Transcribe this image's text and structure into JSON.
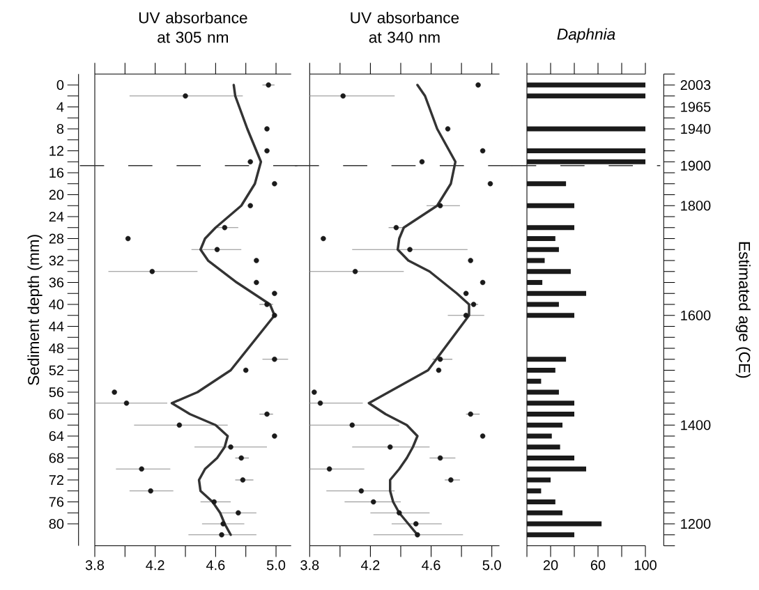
{
  "chart_data": [
    {
      "type": "scatter",
      "title": "UV absorbance at 305 nm",
      "ylabel": "Sediment depth (mm)",
      "orientation": "horizontal",
      "xlim": [
        3.8,
        5.1
      ],
      "xticks": [
        3.8,
        {
          "value": 4.0,
          "label": null
        },
        4.2,
        {
          "value": 4.4,
          "label": null
        },
        4.6,
        {
          "value": 4.8,
          "label": null
        },
        {
          "value": 5,
          "label": "5.0"
        }
      ],
      "ylim": [
        84,
        -2
      ],
      "yticks": [
        0,
        4,
        8,
        12,
        16,
        20,
        24,
        28,
        32,
        36,
        40,
        44,
        48,
        52,
        56,
        60,
        64,
        68,
        72,
        76,
        80
      ],
      "series": [
        {
          "type": "scatter",
          "marker": "circle",
          "color": "#1a1a1a",
          "x": [
            0,
            2,
            8,
            12,
            14,
            18,
            22,
            26,
            28,
            30,
            32,
            34,
            36,
            38,
            40,
            42,
            50,
            52,
            56,
            58,
            60,
            62,
            64,
            66,
            68,
            70,
            72,
            74,
            76,
            78,
            80,
            82
          ],
          "values": [
            4.95,
            4.4,
            4.94,
            4.94,
            4.83,
            4.99,
            4.83,
            4.66,
            4.02,
            4.61,
            4.87,
            4.18,
            4.87,
            4.99,
            4.94,
            4.99,
            4.99,
            4.8,
            3.93,
            4.01,
            4.94,
            4.36,
            4.99,
            4.7,
            4.77,
            4.11,
            4.78,
            4.17,
            4.59,
            4.75,
            4.65,
            4.64
          ],
          "errors": [
            [
              4.91,
              4.99
            ],
            [
              4.03,
              4.78
            ],
            null,
            null,
            null,
            null,
            null,
            [
              4.6,
              4.75
            ],
            null,
            [
              4.44,
              4.77
            ],
            null,
            [
              3.89,
              4.48
            ],
            null,
            null,
            [
              4.89,
              4.98
            ],
            null,
            [
              4.91,
              5.08
            ],
            null,
            null,
            [
              3.8,
              4.28
            ],
            [
              4.89,
              4.98
            ],
            [
              4.06,
              4.68
            ],
            null,
            [
              4.46,
              4.94
            ],
            [
              4.73,
              4.82
            ],
            [
              3.94,
              4.3
            ],
            [
              4.73,
              4.85
            ],
            [
              4.03,
              4.32
            ],
            [
              4.5,
              4.7
            ],
            [
              4.63,
              4.87
            ],
            [
              4.51,
              4.79
            ],
            [
              4.42,
              4.87
            ]
          ]
        },
        {
          "type": "line",
          "color": "#333333",
          "x": [
            0,
            2,
            8,
            14,
            18,
            22,
            26,
            28,
            30,
            32,
            36,
            40,
            42,
            52,
            56,
            58,
            60,
            62,
            64,
            66,
            68,
            70,
            72,
            74,
            76,
            78,
            80,
            82
          ],
          "values": [
            4.72,
            4.73,
            4.81,
            4.9,
            4.86,
            4.77,
            4.6,
            4.53,
            4.5,
            4.55,
            4.74,
            4.96,
            4.99,
            4.7,
            4.48,
            4.31,
            4.43,
            4.6,
            4.68,
            4.66,
            4.61,
            4.53,
            4.49,
            4.5,
            4.58,
            4.63,
            4.66,
            4.7
          ]
        }
      ],
      "ref_lines": [
        {
          "axis": "y",
          "value": 14.7,
          "line_style": "dashed",
          "color": "#333333"
        }
      ]
    },
    {
      "type": "scatter",
      "title": "UV absorbance at 340 nm",
      "orientation": "horizontal",
      "tick_labels": "x",
      "xlim": [
        3.8,
        5.05
      ],
      "xticks": [
        3.8,
        {
          "value": 4.0,
          "label": null
        },
        4.2,
        {
          "value": 4.4,
          "label": null
        },
        4.6,
        {
          "value": 4.8,
          "label": null
        },
        {
          "value": 5,
          "label": "5.0"
        }
      ],
      "ylim": [
        84,
        -2
      ],
      "series": [
        {
          "type": "scatter",
          "marker": "circle",
          "color": "#1a1a1a",
          "x": [
            0,
            2,
            8,
            12,
            14,
            18,
            22,
            26,
            28,
            30,
            32,
            34,
            36,
            38,
            40,
            42,
            50,
            52,
            56,
            58,
            60,
            62,
            64,
            66,
            68,
            70,
            72,
            74,
            76,
            78,
            80,
            82
          ],
          "values": [
            4.91,
            4.02,
            4.71,
            4.94,
            4.54,
            4.99,
            4.66,
            4.37,
            3.89,
            4.46,
            4.86,
            4.1,
            4.94,
            4.83,
            4.88,
            4.83,
            4.66,
            4.65,
            3.83,
            3.87,
            4.86,
            4.08,
            4.94,
            4.33,
            4.66,
            3.93,
            4.73,
            4.14,
            4.22,
            4.39,
            4.5,
            4.51
          ],
          "errors": [
            null,
            [
              3.8,
              4.36
            ],
            null,
            null,
            null,
            null,
            [
              4.57,
              4.79
            ],
            [
              4.32,
              4.42
            ],
            null,
            [
              4.08,
              4.84
            ],
            null,
            [
              3.8,
              4.42
            ],
            null,
            null,
            [
              4.85,
              4.91
            ],
            [
              4.71,
              4.95
            ],
            [
              4.61,
              4.74
            ],
            null,
            null,
            [
              3.8,
              4.15
            ],
            [
              4.83,
              4.92
            ],
            [
              3.8,
              4.39
            ],
            null,
            [
              4.08,
              4.59
            ],
            [
              4.59,
              4.76
            ],
            [
              3.8,
              4.16
            ],
            [
              4.69,
              4.79
            ],
            [
              3.91,
              4.36
            ],
            [
              4.03,
              4.4
            ],
            [
              4.2,
              4.59
            ],
            [
              4.34,
              4.67
            ],
            [
              4.22,
              4.81
            ]
          ]
        },
        {
          "type": "line",
          "color": "#333333",
          "x": [
            0,
            2,
            8,
            14,
            18,
            22,
            26,
            28,
            30,
            32,
            34,
            36,
            38,
            40,
            42,
            52,
            56,
            58,
            60,
            62,
            64,
            66,
            68,
            70,
            72,
            74,
            76,
            78,
            80,
            82
          ],
          "values": [
            4.51,
            4.56,
            4.64,
            4.76,
            4.73,
            4.64,
            4.42,
            4.39,
            4.38,
            4.45,
            4.59,
            4.68,
            4.77,
            4.85,
            4.85,
            4.58,
            4.32,
            4.19,
            4.3,
            4.44,
            4.51,
            4.48,
            4.44,
            4.39,
            4.33,
            4.33,
            4.35,
            4.39,
            4.45,
            4.51
          ]
        }
      ],
      "ref_lines": [
        {
          "axis": "y",
          "value": 14.7,
          "line_style": "dashed",
          "color": "#333333"
        }
      ]
    },
    {
      "type": "bar",
      "title": "Daphnia",
      "y2label": "Estimated age (CE)",
      "orientation": "horizontal",
      "color": "#1a1a1a",
      "x": [
        0,
        2,
        8,
        12,
        14,
        18,
        22,
        26,
        28,
        30,
        32,
        34,
        36,
        38,
        40,
        42,
        50,
        52,
        54,
        56,
        58,
        60,
        62,
        64,
        66,
        68,
        70,
        72,
        74,
        76,
        78,
        80,
        82
      ],
      "values": [
        100,
        100,
        100,
        100,
        100,
        33,
        40,
        40,
        24,
        27,
        15,
        37,
        13,
        50,
        27,
        40,
        33,
        24,
        12,
        27,
        40,
        40,
        30,
        21,
        28,
        40,
        50,
        20,
        12,
        24,
        30,
        63,
        40
      ],
      "xlim": [
        0,
        100
      ],
      "xticks": [
        {
          "value": 0,
          "label": null
        },
        20,
        {
          "value": 40,
          "label": null
        },
        60,
        {
          "value": 80,
          "label": null
        },
        100
      ],
      "ylim": [
        84,
        -2
      ],
      "annotations": [
        "2003",
        "1965",
        "1940",
        "1900",
        "1800",
        "1600",
        "1400",
        "1200"
      ],
      "ref_lines": [
        {
          "axis": "y",
          "value": 14.7,
          "line_style": "dashed",
          "color": "#333333"
        }
      ]
    }
  ]
}
